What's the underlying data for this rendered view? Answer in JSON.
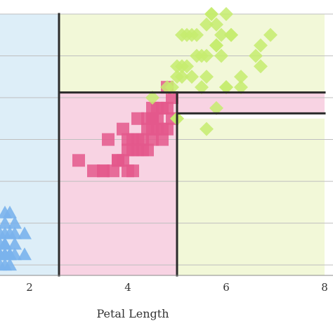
{
  "chart_data": {
    "type": "scatter",
    "xlabel": "Petal Length",
    "xlim": [
      1.4,
      8
    ],
    "ylim": [
      0,
      2.5
    ],
    "x_ticks": [
      2,
      4,
      6,
      8
    ],
    "x_tick_labels": [
      "2",
      "4",
      "6",
      "8"
    ],
    "y_gridlines": [
      0.1,
      0.5,
      0.9,
      1.3,
      1.7,
      2.1,
      2.5
    ],
    "grid": true,
    "legend": "none",
    "regions": [
      {
        "class": "setosa",
        "color": "#ddeef8",
        "x": [
          1.4,
          2.6
        ],
        "y": [
          0,
          2.5
        ]
      },
      {
        "class": "versicolor",
        "color": "#f8d3e3",
        "x": [
          2.6,
          5.0
        ],
        "y": [
          0,
          1.75
        ]
      },
      {
        "class": "virginica",
        "color": "#f2f8d8",
        "x": [
          2.6,
          8.0
        ],
        "y": [
          1.75,
          2.5
        ]
      },
      {
        "class": "virginica",
        "color": "#f2f8d8",
        "x": [
          5.0,
          8.0
        ],
        "y": [
          0,
          1.5
        ]
      },
      {
        "class": "versicolor",
        "color": "#f8d3e3",
        "x": [
          5.0,
          8.0
        ],
        "y": [
          1.55,
          1.75
        ]
      }
    ],
    "split_lines": [
      {
        "x": [
          2.6,
          2.6
        ],
        "y": [
          0,
          2.5
        ]
      },
      {
        "x": [
          2.6,
          8.0
        ],
        "y": [
          1.75,
          1.75
        ]
      },
      {
        "x": [
          5.0,
          5.0
        ],
        "y": [
          0,
          1.75
        ]
      },
      {
        "x": [
          5.0,
          8.0
        ],
        "y": [
          1.55,
          1.55
        ]
      }
    ],
    "series": [
      {
        "color": "#7ab3ec",
        "marker": "triangle",
        "x": [
          1.4,
          1.5,
          1.6,
          1.7,
          1.5,
          1.4,
          1.3,
          1.9,
          1.5,
          1.6,
          1.4,
          1.5,
          1.7,
          1.6,
          1.4,
          1.5,
          1.9,
          1.7,
          1.3,
          1.5,
          1.6,
          1.4,
          1.5,
          1.6,
          1.7,
          1.5
        ],
        "y": [
          0.2,
          0.2,
          0.2,
          0.3,
          0.4,
          0.1,
          0.2,
          0.2,
          0.3,
          0.4,
          0.3,
          0.2,
          0.4,
          0.6,
          0.2,
          0.1,
          0.4,
          0.5,
          0.3,
          0.5,
          0.2,
          0.4,
          0.3,
          0.1,
          0.2,
          0.6
        ]
      },
      {
        "color": "#e4588c",
        "marker": "square",
        "x": [
          3.0,
          3.3,
          3.5,
          3.6,
          3.8,
          3.9,
          4.0,
          4.1,
          4.2,
          4.3,
          4.4,
          4.5,
          4.6,
          4.7,
          4.8,
          4.9,
          4.0,
          4.3,
          4.5,
          4.7,
          4.4,
          3.9,
          4.1,
          4.6,
          4.8,
          4.5,
          4.2,
          3.7,
          4.0,
          4.5,
          4.7,
          4.9,
          4.4,
          3.5,
          4.1,
          4.6,
          4.8,
          4.2,
          4.5,
          3.8
        ],
        "y": [
          1.1,
          1.0,
          1.0,
          1.3,
          1.1,
          1.4,
          1.3,
          1.0,
          1.3,
          1.3,
          1.4,
          1.5,
          1.4,
          1.6,
          1.8,
          1.5,
          1.0,
          1.2,
          1.3,
          1.4,
          1.2,
          1.1,
          1.3,
          1.5,
          1.4,
          1.6,
          1.5,
          1.0,
          1.2,
          1.4,
          1.3,
          1.7,
          1.5,
          1.0,
          1.2,
          1.6,
          1.6,
          1.2,
          1.5,
          1.1
        ]
      },
      {
        "color": "#c6ec6e",
        "marker": "diamond",
        "x": [
          4.8,
          4.9,
          5.0,
          5.1,
          5.2,
          5.3,
          5.4,
          5.5,
          5.6,
          5.7,
          5.8,
          5.9,
          6.0,
          6.1,
          6.3,
          6.6,
          6.7,
          6.9,
          5.1,
          5.5,
          5.6,
          5.8,
          6.1,
          5.0,
          5.1,
          5.3,
          5.6,
          5.9,
          5.7,
          5.4,
          6.0,
          4.5,
          5.0,
          5.6,
          6.0,
          6.3,
          6.7,
          5.2,
          5.8,
          5.0,
          5.8
        ],
        "y": [
          1.8,
          1.8,
          2.0,
          2.3,
          2.3,
          1.9,
          2.1,
          2.1,
          2.4,
          2.5,
          2.2,
          2.3,
          2.5,
          2.3,
          1.9,
          2.1,
          2.2,
          2.3,
          2.0,
          1.8,
          1.9,
          2.4,
          2.3,
          1.9,
          1.9,
          2.3,
          2.1,
          2.1,
          2.5,
          2.3,
          1.8,
          1.7,
          1.5,
          1.4,
          1.8,
          1.8,
          2.0,
          2.0,
          2.2,
          1.5,
          1.6
        ]
      }
    ]
  }
}
